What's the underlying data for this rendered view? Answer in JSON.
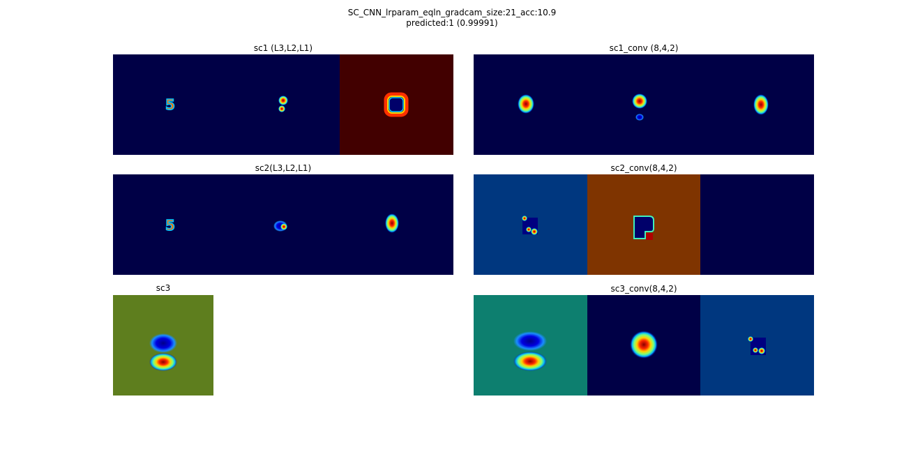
{
  "figure": {
    "title_line1": "SC_CNN_lrparam_eqln_gradcam_size:21_acc:10.9",
    "title_line2": "predicted:1 (0.99991)"
  },
  "panels": {
    "sc1": {
      "title": "sc1 (L3,L2,L1)"
    },
    "sc1_conv": {
      "title": "sc1_conv (8,4,2)"
    },
    "sc2": {
      "title": "sc2(L3,L2,L1)"
    },
    "sc2_conv": {
      "title": "sc2_conv(8,4,2)"
    },
    "sc3": {
      "title": "sc3"
    },
    "sc3_conv": {
      "title": "sc3_conv(8,4,2)"
    }
  },
  "colormap": {
    "name": "jet",
    "background_colors": {
      "navy": "#000046",
      "dark_red": "#420000",
      "blue": "#00377f",
      "orange": "#7f3400",
      "teal": "#0d7f6f",
      "olive": "#5e7e1e"
    }
  }
}
